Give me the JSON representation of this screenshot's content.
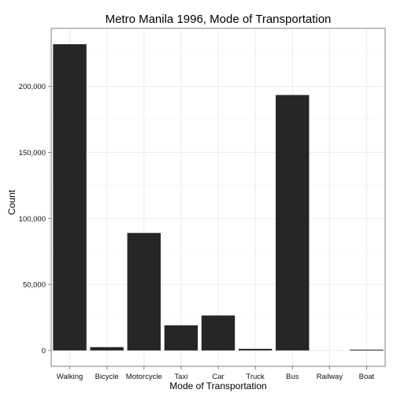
{
  "chart_data": {
    "type": "bar",
    "title": "Metro Manila 1996, Mode of Transportation",
    "xlabel": "Mode of Transportation",
    "ylabel": "Count",
    "categories": [
      "Walking",
      "Bicycle",
      "Motorcycle",
      "Taxi",
      "Car",
      "Truck",
      "Bus",
      "Railway",
      "Boat"
    ],
    "values": [
      232000,
      2500,
      89000,
      19000,
      26500,
      1200,
      193500,
      0,
      600
    ],
    "ylim": [
      -12000,
      244000
    ],
    "yticks": [
      0,
      50000,
      100000,
      150000,
      200000
    ],
    "ytick_labels": [
      "0",
      "50,000",
      "100,000",
      "150,000",
      "200,000"
    ],
    "grid": true,
    "bar_color": "#262626"
  }
}
